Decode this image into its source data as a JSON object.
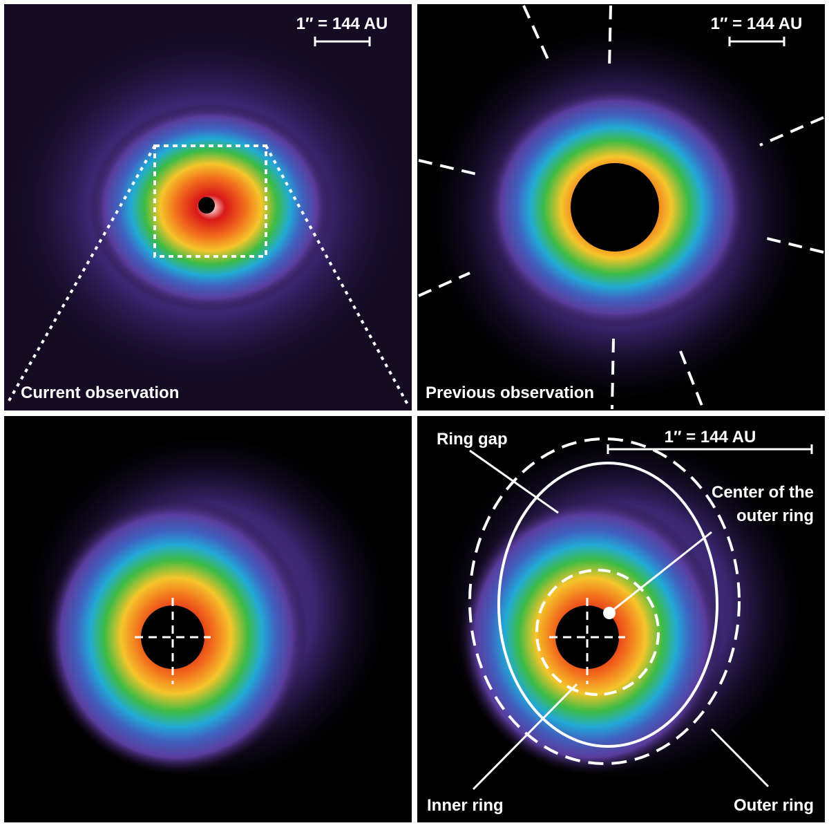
{
  "panels": {
    "current": {
      "scale_label": "1″ = 144 AU",
      "caption": "Current observation"
    },
    "previous": {
      "scale_label": "1″ = 144 AU",
      "caption": "Previous observation"
    },
    "annotated": {
      "scale_label": "1″ = 144 AU",
      "labels": {
        "ring_gap": "Ring gap",
        "center_line1": "Center of the",
        "center_line2": "outer ring",
        "inner_ring": "Inner ring",
        "outer_ring": "Outer ring"
      }
    }
  }
}
